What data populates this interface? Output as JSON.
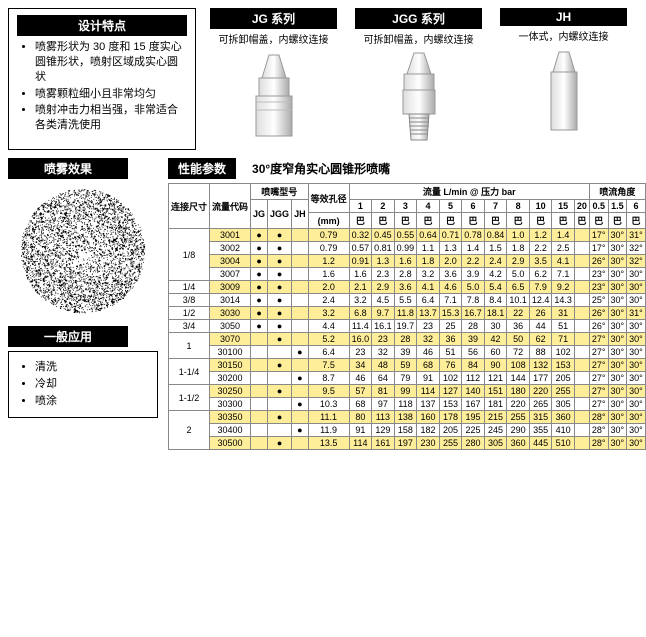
{
  "features": {
    "title": "设计特点",
    "items": [
      "喷雾形状为 30 度和 15 度实心圆锥形状，喷射区域成实心圆状",
      "喷雾颗粒细小且非常均匀",
      "喷射冲击力相当强，非常适合各类清洗使用"
    ]
  },
  "series": [
    {
      "name": "JG  系列",
      "sub": "可拆卸帽盖，内螺纹连接"
    },
    {
      "name": "JGG  系列",
      "sub": "可拆卸帽盖，内螺纹连接"
    },
    {
      "name": "JH",
      "sub": "一体式，内螺纹连接"
    }
  ],
  "spray_effect_title": "喷雾效果",
  "app": {
    "title": "一般应用",
    "items": [
      "清洗",
      "冷却",
      "喷涂"
    ]
  },
  "perf": {
    "title": "性能参数",
    "sub": "30°度窄角实心圆锥形喷嘴"
  },
  "table": {
    "head": {
      "conn": "连接尺寸",
      "code": "流量代码",
      "model": "喷嘴型号",
      "model_sub": [
        "JG",
        "JGG",
        "JH"
      ],
      "diam": "等效孔径",
      "diam_unit": "(mm)",
      "flow": "流量  L/min  @  压力 bar",
      "pressures": [
        "1",
        "2",
        "3",
        "4",
        "5",
        "6",
        "7",
        "8",
        "10",
        "15",
        "20"
      ],
      "bar": "巴",
      "angle": "喷流角度",
      "angle_p": [
        "0.5",
        "1.5",
        "6"
      ]
    },
    "rows": [
      {
        "conn": "1/8",
        "code": "3001",
        "jg": "●",
        "jgg": "●",
        "jh": "",
        "d": "0.79",
        "v": [
          "0.32",
          "0.45",
          "0.55",
          "0.64",
          "0.71",
          "0.78",
          "0.84",
          "1.0",
          "1.2",
          "1.4",
          ""
        ],
        "a": [
          "17°",
          "30°",
          "31°"
        ],
        "hl": 1
      },
      {
        "conn": "",
        "code": "3002",
        "jg": "●",
        "jgg": "●",
        "jh": "",
        "d": "0.79",
        "v": [
          "0.57",
          "0.81",
          "0.99",
          "1.1",
          "1.3",
          "1.4",
          "1.5",
          "1.8",
          "2.2",
          "2.5",
          ""
        ],
        "a": [
          "17°",
          "30°",
          "32°"
        ],
        "hl": 0
      },
      {
        "conn": "",
        "code": "3004",
        "jg": "●",
        "jgg": "●",
        "jh": "",
        "d": "1.2",
        "v": [
          "0.91",
          "1.3",
          "1.6",
          "1.8",
          "2.0",
          "2.2",
          "2.4",
          "2.9",
          "3.5",
          "4.1",
          ""
        ],
        "a": [
          "26°",
          "30°",
          "32°"
        ],
        "hl": 1
      },
      {
        "conn": "",
        "code": "3007",
        "jg": "●",
        "jgg": "●",
        "jh": "",
        "d": "1.6",
        "v": [
          "1.6",
          "2.3",
          "2.8",
          "3.2",
          "3.6",
          "3.9",
          "4.2",
          "5.0",
          "6.2",
          "7.1",
          ""
        ],
        "a": [
          "23°",
          "30°",
          "30°"
        ],
        "hl": 0
      },
      {
        "conn": "1/4",
        "code": "3009",
        "jg": "●",
        "jgg": "●",
        "jh": "",
        "d": "2.0",
        "v": [
          "2.1",
          "2.9",
          "3.6",
          "4.1",
          "4.6",
          "5.0",
          "5.4",
          "6.5",
          "7.9",
          "9.2",
          ""
        ],
        "a": [
          "23°",
          "30°",
          "30°"
        ],
        "hl": 1
      },
      {
        "conn": "3/8",
        "code": "3014",
        "jg": "●",
        "jgg": "●",
        "jh": "",
        "d": "2.4",
        "v": [
          "3.2",
          "4.5",
          "5.5",
          "6.4",
          "7.1",
          "7.8",
          "8.4",
          "10.1",
          "12.4",
          "14.3",
          ""
        ],
        "a": [
          "25°",
          "30°",
          "30°"
        ],
        "hl": 0
      },
      {
        "conn": "1/2",
        "code": "3030",
        "jg": "●",
        "jgg": "●",
        "jh": "",
        "d": "3.2",
        "v": [
          "6.8",
          "9.7",
          "11.8",
          "13.7",
          "15.3",
          "16.7",
          "18.1",
          "22",
          "26",
          "31",
          ""
        ],
        "a": [
          "26°",
          "30°",
          "31°"
        ],
        "hl": 1
      },
      {
        "conn": "3/4",
        "code": "3050",
        "jg": "●",
        "jgg": "●",
        "jh": "",
        "d": "4.4",
        "v": [
          "11.4",
          "16.1",
          "19.7",
          "23",
          "25",
          "28",
          "30",
          "36",
          "44",
          "51",
          ""
        ],
        "a": [
          "26°",
          "30°",
          "30°"
        ],
        "hl": 0
      },
      {
        "conn": "1",
        "code": "3070",
        "jg": "",
        "jgg": "●",
        "jh": "",
        "d": "5.2",
        "v": [
          "16.0",
          "23",
          "28",
          "32",
          "36",
          "39",
          "42",
          "50",
          "62",
          "71",
          ""
        ],
        "a": [
          "27°",
          "30°",
          "30°"
        ],
        "hl": 1
      },
      {
        "conn": "",
        "code": "30100",
        "jg": "",
        "jgg": "",
        "jh": "●",
        "d": "6.4",
        "v": [
          "23",
          "32",
          "39",
          "46",
          "51",
          "56",
          "60",
          "72",
          "88",
          "102",
          ""
        ],
        "a": [
          "27°",
          "30°",
          "30°"
        ],
        "hl": 0
      },
      {
        "conn": "1-1/4",
        "code": "30150",
        "jg": "",
        "jgg": "●",
        "jh": "",
        "d": "7.5",
        "v": [
          "34",
          "48",
          "59",
          "68",
          "76",
          "84",
          "90",
          "108",
          "132",
          "153",
          ""
        ],
        "a": [
          "27°",
          "30°",
          "30°"
        ],
        "hl": 1
      },
      {
        "conn": "",
        "code": "30200",
        "jg": "",
        "jgg": "",
        "jh": "●",
        "d": "8.7",
        "v": [
          "46",
          "64",
          "79",
          "91",
          "102",
          "112",
          "121",
          "144",
          "177",
          "205",
          ""
        ],
        "a": [
          "27°",
          "30°",
          "30°"
        ],
        "hl": 0
      },
      {
        "conn": "1-1/2",
        "code": "30250",
        "jg": "",
        "jgg": "●",
        "jh": "",
        "d": "9.5",
        "v": [
          "57",
          "81",
          "99",
          "114",
          "127",
          "140",
          "151",
          "180",
          "220",
          "255",
          ""
        ],
        "a": [
          "27°",
          "30°",
          "30°"
        ],
        "hl": 1
      },
      {
        "conn": "",
        "code": "30300",
        "jg": "",
        "jgg": "",
        "jh": "●",
        "d": "10.3",
        "v": [
          "68",
          "97",
          "118",
          "137",
          "153",
          "167",
          "181",
          "220",
          "265",
          "305",
          ""
        ],
        "a": [
          "27°",
          "30°",
          "30°"
        ],
        "hl": 0
      },
      {
        "conn": "2",
        "code": "30350",
        "jg": "",
        "jgg": "●",
        "jh": "",
        "d": "11.1",
        "v": [
          "80",
          "113",
          "138",
          "160",
          "178",
          "195",
          "215",
          "255",
          "315",
          "360",
          ""
        ],
        "a": [
          "28°",
          "30°",
          "30°"
        ],
        "hl": 1
      },
      {
        "conn": "",
        "code": "30400",
        "jg": "",
        "jgg": "",
        "jh": "●",
        "d": "11.9",
        "v": [
          "91",
          "129",
          "158",
          "182",
          "205",
          "225",
          "245",
          "290",
          "355",
          "410",
          ""
        ],
        "a": [
          "28°",
          "30°",
          "30°"
        ],
        "hl": 0
      },
      {
        "conn": "",
        "code": "30500",
        "jg": "",
        "jgg": "●",
        "jh": "",
        "d": "13.5",
        "v": [
          "114",
          "161",
          "197",
          "230",
          "255",
          "280",
          "305",
          "360",
          "445",
          "510",
          ""
        ],
        "a": [
          "28°",
          "30°",
          "30°"
        ],
        "hl": 1
      }
    ]
  }
}
